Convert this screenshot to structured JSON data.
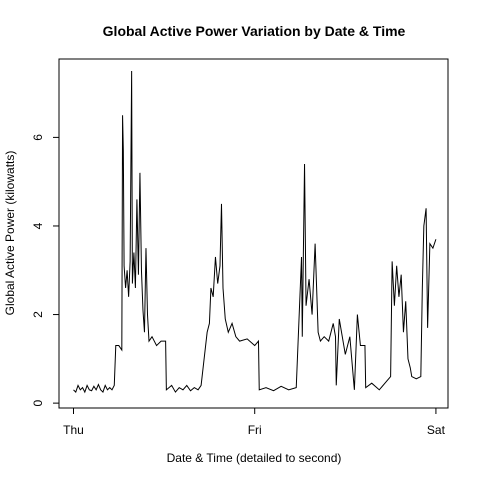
{
  "chart_data": {
    "type": "line",
    "title": "Global Active Power Variation by Date & Time",
    "xlabel": "Date & Time (detailed to second)",
    "ylabel": "Global Active Power (kilowatts)",
    "color": "#000000",
    "x": [
      0,
      0.3,
      0.6,
      0.9,
      1.2,
      1.5,
      1.8,
      2.1,
      2.4,
      2.7,
      3.0,
      3.3,
      3.6,
      3.9,
      4.2,
      4.5,
      4.8,
      5.1,
      5.4,
      5.6,
      6.0,
      6.4,
      6.5,
      6.6,
      6.7,
      6.9,
      7.1,
      7.3,
      7.5,
      7.7,
      7.8,
      8.0,
      8.2,
      8.4,
      8.6,
      8.8,
      9.0,
      9.2,
      9.4,
      9.6,
      9.8,
      10.0,
      10.4,
      11.0,
      11.6,
      12.2,
      12.3,
      13.0,
      13.5,
      14.0,
      14.5,
      15.0,
      15.5,
      16.0,
      16.5,
      16.9,
      17.3,
      17.7,
      18.0,
      18.2,
      18.5,
      18.8,
      19.1,
      19.4,
      19.6,
      19.8,
      20.1,
      20.5,
      21.0,
      21.5,
      22.0,
      23.0,
      24.0,
      24.5,
      24.6,
      25.5,
      26.5,
      27.5,
      28.5,
      29.5,
      30.2,
      30.3,
      30.6,
      30.8,
      31.2,
      31.6,
      32.0,
      32.4,
      32.7,
      33.2,
      33.8,
      34.4,
      34.7,
      34.8,
      35.2,
      35.8,
      36.0,
      36.6,
      37.2,
      37.6,
      38.0,
      38.6,
      38.7,
      39.5,
      40.5,
      41.5,
      42.0,
      42.2,
      42.5,
      42.8,
      43.1,
      43.4,
      43.7,
      44.0,
      44.3,
      44.6,
      44.8,
      45.4,
      46.0,
      46.2,
      46.4,
      46.7,
      46.9,
      47.2,
      47.6,
      48.0
    ],
    "values": [
      0.3,
      0.25,
      0.4,
      0.3,
      0.35,
      0.25,
      0.4,
      0.3,
      0.28,
      0.38,
      0.3,
      0.42,
      0.3,
      0.25,
      0.4,
      0.3,
      0.35,
      0.3,
      0.4,
      1.3,
      1.3,
      1.2,
      6.5,
      5.7,
      3.1,
      2.6,
      3.0,
      2.4,
      3.2,
      7.5,
      2.7,
      3.4,
      2.6,
      4.6,
      2.9,
      5.2,
      3.0,
      2.1,
      1.6,
      3.5,
      2.0,
      1.4,
      1.5,
      1.3,
      1.4,
      1.4,
      0.3,
      0.4,
      0.25,
      0.35,
      0.3,
      0.4,
      0.28,
      0.35,
      0.3,
      0.4,
      1.0,
      1.6,
      1.8,
      2.6,
      2.4,
      3.3,
      2.7,
      3.1,
      4.5,
      2.6,
      1.9,
      1.6,
      1.8,
      1.5,
      1.4,
      1.45,
      1.3,
      1.4,
      0.3,
      0.35,
      0.28,
      0.38,
      0.3,
      0.35,
      3.3,
      1.5,
      5.4,
      2.2,
      2.8,
      2.0,
      3.6,
      1.6,
      1.4,
      1.5,
      1.4,
      1.8,
      1.5,
      0.4,
      1.9,
      1.3,
      1.1,
      1.5,
      0.3,
      2.0,
      1.3,
      1.3,
      0.35,
      0.45,
      0.3,
      0.5,
      0.6,
      3.2,
      2.2,
      3.1,
      2.4,
      2.9,
      1.6,
      2.3,
      1.0,
      0.8,
      0.6,
      0.55,
      0.6,
      2.6,
      4.0,
      4.4,
      1.7,
      3.6,
      3.5,
      3.7
    ],
    "xlim": [
      -1.92,
      49.6
    ],
    "xticks": [
      {
        "value": 0,
        "label": "Thu"
      },
      {
        "value": 24,
        "label": "Fri"
      },
      {
        "value": 48,
        "label": "Sat"
      }
    ],
    "ylim": [
      -0.11,
      7.77
    ],
    "yticks": [
      0,
      2,
      4,
      6
    ]
  }
}
